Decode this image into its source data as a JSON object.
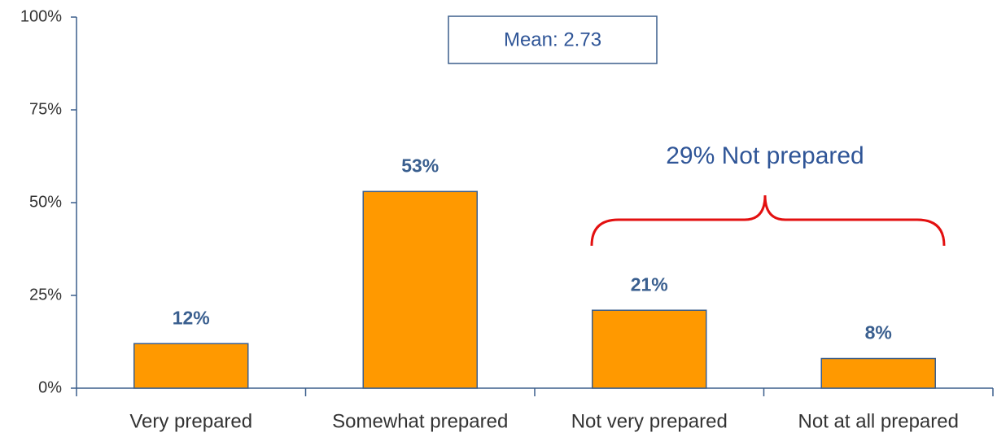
{
  "chart_data": {
    "type": "bar",
    "categories": [
      "Very prepared",
      "Somewhat prepared",
      "Not very prepared",
      "Not at all prepared"
    ],
    "values": [
      12,
      53,
      21,
      8
    ],
    "value_labels": [
      "12%",
      "53%",
      "21%",
      "8%"
    ],
    "color": "#FF9900",
    "ylim": [
      0,
      100
    ],
    "yticks": [
      {
        "value": 0,
        "label": "0%"
      },
      {
        "value": 25,
        "label": "25%"
      },
      {
        "value": 50,
        "label": "50%"
      },
      {
        "value": 75,
        "label": "75%"
      },
      {
        "value": 100,
        "label": "100%"
      }
    ],
    "grid": false,
    "annotations": [
      "Mean: 2.73",
      "29% Not prepared"
    ]
  }
}
